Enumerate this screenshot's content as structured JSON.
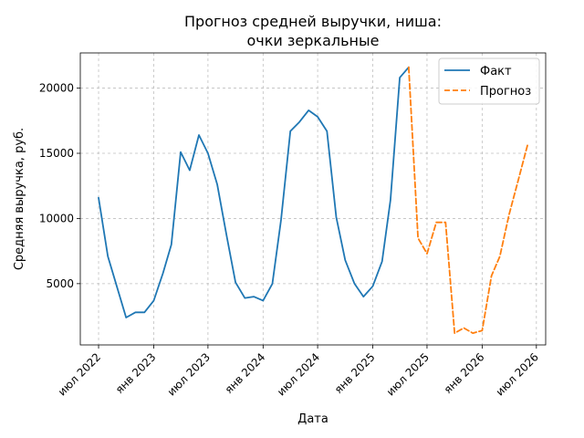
{
  "chart_data": {
    "type": "line",
    "title_lines": [
      "Прогноз средней выручки, ниша:",
      "очки зеркальные"
    ],
    "xlabel": "Дата",
    "ylabel": "Средняя выручка, руб.",
    "xlim": [
      "2022-05-01",
      "2026-08-01"
    ],
    "ylim": [
      300,
      22700
    ],
    "x_ticks": [
      {
        "date": "2022-07-01",
        "label": "июл 2022"
      },
      {
        "date": "2023-01-01",
        "label": "янв 2023"
      },
      {
        "date": "2023-07-01",
        "label": "июл 2023"
      },
      {
        "date": "2024-01-01",
        "label": "янв 2024"
      },
      {
        "date": "2024-07-01",
        "label": "июл 2024"
      },
      {
        "date": "2025-01-01",
        "label": "янв 2025"
      },
      {
        "date": "2025-07-01",
        "label": "июл 2025"
      },
      {
        "date": "2026-01-01",
        "label": "янв 2026"
      },
      {
        "date": "2026-07-01",
        "label": "июл 2026"
      }
    ],
    "y_ticks": [
      {
        "value": 5000,
        "label": "5000"
      },
      {
        "value": 10000,
        "label": "10000"
      },
      {
        "value": 15000,
        "label": "15000"
      },
      {
        "value": 20000,
        "label": "20000"
      }
    ],
    "grid": true,
    "legend_position": "top-right",
    "series": [
      {
        "name": "Факт",
        "color": "#1f77b4",
        "style": "solid",
        "x": [
          "2022-07-01",
          "2022-08-01",
          "2022-09-01",
          "2022-10-01",
          "2022-11-01",
          "2022-12-01",
          "2023-01-01",
          "2023-02-01",
          "2023-03-01",
          "2023-04-01",
          "2023-05-01",
          "2023-06-01",
          "2023-07-01",
          "2023-08-01",
          "2023-09-01",
          "2023-10-01",
          "2023-11-01",
          "2023-12-01",
          "2024-01-01",
          "2024-02-01",
          "2024-03-01",
          "2024-04-01",
          "2024-05-01",
          "2024-06-01",
          "2024-07-01",
          "2024-08-01",
          "2024-09-01",
          "2024-10-01",
          "2024-11-01",
          "2024-12-01",
          "2025-01-01",
          "2025-02-01",
          "2025-03-01",
          "2025-04-01",
          "2025-05-01"
        ],
        "y": [
          11600,
          7100,
          4700,
          2400,
          2800,
          2800,
          3700,
          5800,
          8000,
          15100,
          13700,
          16400,
          15000,
          12600,
          8700,
          5100,
          3900,
          4000,
          3700,
          5000,
          9900,
          16700,
          17400,
          18300,
          17800,
          16700,
          10100,
          6800,
          5000,
          4000,
          4800,
          6700,
          11400,
          20800,
          21600
        ]
      },
      {
        "name": "Прогноз",
        "color": "#ff7f0e",
        "style": "dashed",
        "x": [
          "2025-05-01",
          "2025-06-01",
          "2025-07-01",
          "2025-08-01",
          "2025-09-01",
          "2025-10-01",
          "2025-11-01",
          "2025-12-01",
          "2026-01-01",
          "2026-02-01",
          "2026-03-01",
          "2026-04-01",
          "2026-05-01",
          "2026-06-01"
        ],
        "y": [
          21600,
          8500,
          7300,
          9700,
          9700,
          1200,
          1600,
          1200,
          1400,
          5600,
          7100,
          10300,
          12900,
          15600
        ]
      }
    ]
  }
}
